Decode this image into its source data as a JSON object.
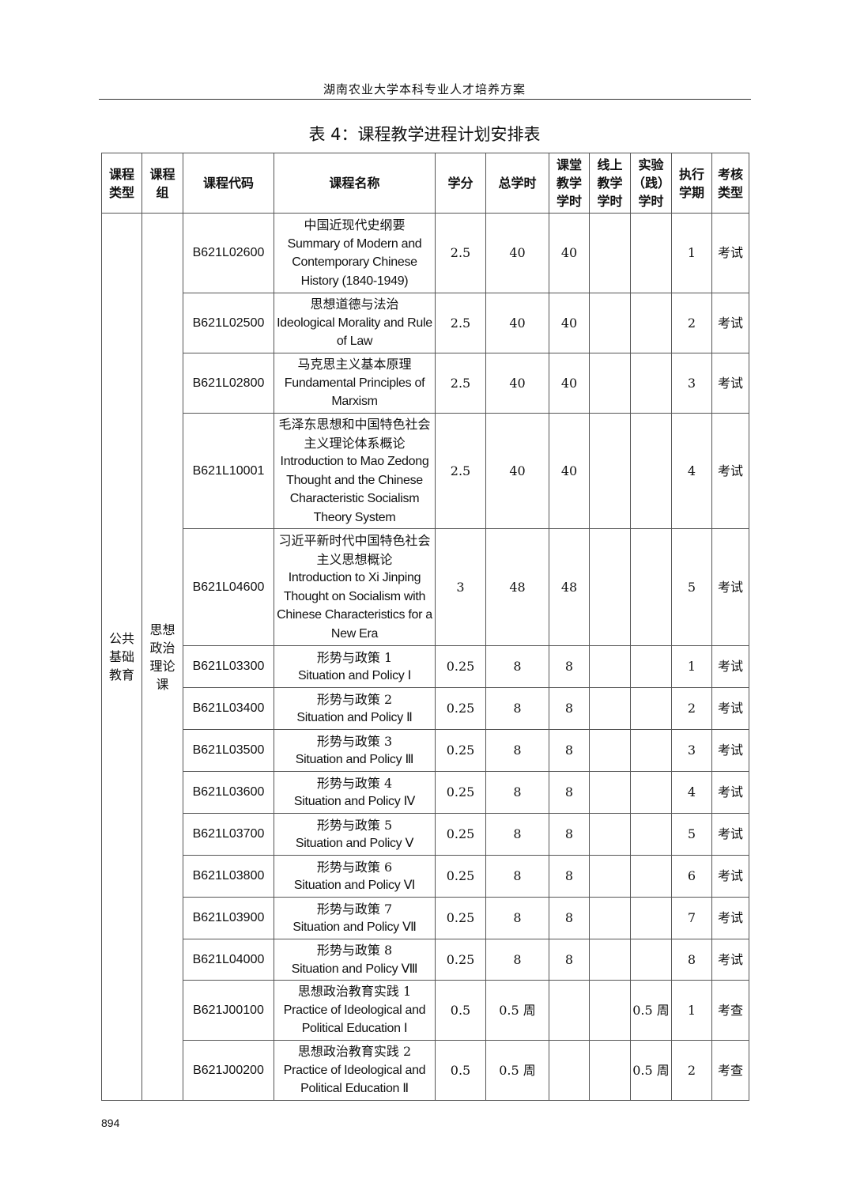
{
  "running_head": "湖南农业大学本科专业人才培养方案",
  "title": "表 4：课程教学进程计划安排表",
  "headers": [
    "课程类型",
    "课程组",
    "课程代码",
    "课程名称",
    "学分",
    "总学时",
    "课堂教学学时",
    "线上教学学时",
    "实验（践）学时",
    "执行学期",
    "考核类型"
  ],
  "header_lines": [
    [
      "课程",
      "类型"
    ],
    [
      "课程",
      "组"
    ],
    [
      "课程代码"
    ],
    [
      "课程名称"
    ],
    [
      "学分"
    ],
    [
      "总学时"
    ],
    [
      "课堂",
      "教学",
      "学时"
    ],
    [
      "线上",
      "教学",
      "学时"
    ],
    [
      "实验",
      "（践）",
      "学时"
    ],
    [
      "执行",
      "学期"
    ],
    [
      "考核",
      "类型"
    ]
  ],
  "category": {
    "type": "公共基础教育",
    "type_lines": [
      "公共",
      "基础",
      "教育"
    ],
    "group": "思想政治理论课",
    "group_lines": [
      "思想",
      "政治",
      "理论",
      "课"
    ]
  },
  "rows": [
    {
      "code": "B621L02600",
      "name_cn": "中国近现代史纲要",
      "name_en": "Summary of Modern and Contemporary Chinese History (1840-1949)",
      "credit": "2.5",
      "total": "40",
      "classroom": "40",
      "online": "",
      "lab": "",
      "term": "1",
      "exam": "考试"
    },
    {
      "code": "B621L02500",
      "name_cn": "思想道德与法治",
      "name_en": "Ideological Morality and Rule of Law",
      "credit": "2.5",
      "total": "40",
      "classroom": "40",
      "online": "",
      "lab": "",
      "term": "2",
      "exam": "考试"
    },
    {
      "code": "B621L02800",
      "name_cn": "马克思主义基本原理",
      "name_en": "Fundamental Principles of Marxism",
      "credit": "2.5",
      "total": "40",
      "classroom": "40",
      "online": "",
      "lab": "",
      "term": "3",
      "exam": "考试"
    },
    {
      "code": "B621L10001",
      "name_cn": "毛泽东思想和中国特色社会主义理论体系概论",
      "name_en": "Introduction to Mao Zedong Thought and the Chinese Characteristic Socialism Theory System",
      "credit": "2.5",
      "total": "40",
      "classroom": "40",
      "online": "",
      "lab": "",
      "term": "4",
      "exam": "考试"
    },
    {
      "code": "B621L04600",
      "name_cn": "习近平新时代中国特色社会主义思想概论",
      "name_en": "Introduction to Xi Jinping Thought on Socialism with Chinese Characteristics for a New Era",
      "credit": "3",
      "total": "48",
      "classroom": "48",
      "online": "",
      "lab": "",
      "term": "5",
      "exam": "考试"
    },
    {
      "code": "B621L03300",
      "name_cn": "形势与政策 1",
      "name_en": "Situation and Policy Ⅰ",
      "credit": "0.25",
      "total": "8",
      "classroom": "8",
      "online": "",
      "lab": "",
      "term": "1",
      "exam": "考试"
    },
    {
      "code": "B621L03400",
      "name_cn": "形势与政策 2",
      "name_en": "Situation and Policy Ⅱ",
      "credit": "0.25",
      "total": "8",
      "classroom": "8",
      "online": "",
      "lab": "",
      "term": "2",
      "exam": "考试"
    },
    {
      "code": "B621L03500",
      "name_cn": "形势与政策 3",
      "name_en": "Situation and Policy Ⅲ",
      "credit": "0.25",
      "total": "8",
      "classroom": "8",
      "online": "",
      "lab": "",
      "term": "3",
      "exam": "考试"
    },
    {
      "code": "B621L03600",
      "name_cn": "形势与政策 4",
      "name_en": "Situation and Policy Ⅳ",
      "credit": "0.25",
      "total": "8",
      "classroom": "8",
      "online": "",
      "lab": "",
      "term": "4",
      "exam": "考试"
    },
    {
      "code": "B621L03700",
      "name_cn": "形势与政策 5",
      "name_en": "Situation and Policy Ⅴ",
      "credit": "0.25",
      "total": "8",
      "classroom": "8",
      "online": "",
      "lab": "",
      "term": "5",
      "exam": "考试"
    },
    {
      "code": "B621L03800",
      "name_cn": "形势与政策 6",
      "name_en": "Situation and Policy Ⅵ",
      "credit": "0.25",
      "total": "8",
      "classroom": "8",
      "online": "",
      "lab": "",
      "term": "6",
      "exam": "考试"
    },
    {
      "code": "B621L03900",
      "name_cn": "形势与政策 7",
      "name_en": "Situation and Policy Ⅶ",
      "credit": "0.25",
      "total": "8",
      "classroom": "8",
      "online": "",
      "lab": "",
      "term": "7",
      "exam": "考试"
    },
    {
      "code": "B621L04000",
      "name_cn": "形势与政策 8",
      "name_en": "Situation and Policy Ⅷ",
      "credit": "0.25",
      "total": "8",
      "classroom": "8",
      "online": "",
      "lab": "",
      "term": "8",
      "exam": "考试"
    },
    {
      "code": "B621J00100",
      "name_cn": "思想政治教育实践 1",
      "name_en": "Practice of Ideological and Political Education Ⅰ",
      "credit": "0.5",
      "total": "0.5 周",
      "classroom": "",
      "online": "",
      "lab": "0.5 周",
      "term": "1",
      "exam": "考查"
    },
    {
      "code": "B621J00200",
      "name_cn": "思想政治教育实践 2",
      "name_en": "Practice of Ideological and Political Education Ⅱ",
      "credit": "0.5",
      "total": "0.5 周",
      "classroom": "",
      "online": "",
      "lab": "0.5 周",
      "term": "2",
      "exam": "考查"
    }
  ],
  "page_number": "894"
}
